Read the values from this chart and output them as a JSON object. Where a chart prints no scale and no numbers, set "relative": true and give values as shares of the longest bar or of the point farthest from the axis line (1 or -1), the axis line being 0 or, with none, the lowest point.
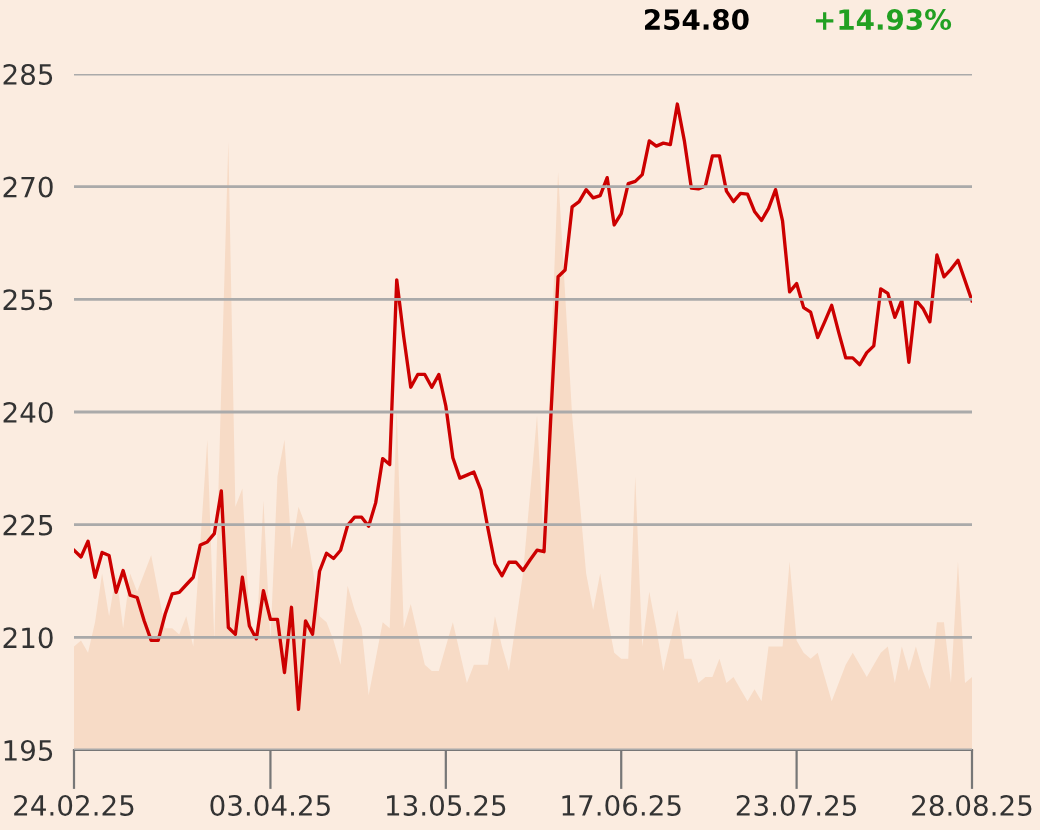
{
  "chart_data": [
    {
      "type": "line",
      "color": "#cc0000",
      "annotations": [
        "254.80",
        "+14.93%"
      ],
      "categories": [
        "24.02.25",
        null,
        null,
        null,
        null,
        null,
        null,
        null,
        null,
        null,
        null,
        null,
        null,
        null,
        null,
        null,
        null,
        null,
        null,
        null,
        null,
        null,
        null,
        null,
        null,
        null,
        null,
        null,
        "03.04.25",
        null,
        null,
        null,
        null,
        null,
        null,
        null,
        null,
        null,
        null,
        null,
        null,
        null,
        null,
        null,
        null,
        null,
        null,
        null,
        null,
        null,
        null,
        null,
        null,
        "13.05.25",
        null,
        null,
        null,
        null,
        null,
        null,
        null,
        null,
        null,
        null,
        null,
        null,
        null,
        null,
        null,
        null,
        null,
        null,
        null,
        null,
        null,
        null,
        null,
        null,
        "17.06.25",
        null,
        null,
        null,
        null,
        null,
        null,
        null,
        null,
        null,
        null,
        null,
        null,
        null,
        null,
        null,
        null,
        null,
        null,
        null,
        null,
        null,
        null,
        null,
        null,
        "23.07.25",
        null,
        null,
        null,
        null,
        null,
        null,
        null,
        null,
        null,
        null,
        null,
        null,
        null,
        null,
        null,
        null,
        null,
        null,
        null,
        null,
        null,
        null,
        null,
        null,
        "28.08.25"
      ],
      "ylim": [
        195,
        285
      ],
      "yticks": [
        195,
        210,
        225,
        240,
        255,
        270,
        285
      ],
      "grid": "y",
      "values": [
        221.6,
        220.7,
        222.8,
        218.0,
        221.3,
        220.9,
        216.0,
        218.9,
        215.6,
        215.3,
        212.2,
        209.6,
        209.6,
        213.1,
        215.8,
        216.0,
        217.0,
        218.0,
        222.3,
        222.7,
        223.8,
        229.5,
        211.3,
        210.4,
        218.0,
        211.5,
        209.8,
        216.2,
        212.4,
        212.4,
        205.3,
        214.0,
        200.4,
        212.2,
        210.4,
        218.8,
        221.2,
        220.5,
        221.6,
        224.9,
        226.0,
        226.0,
        224.8,
        227.9,
        233.8,
        233.0,
        257.6,
        250.0,
        243.3,
        245.0,
        245.0,
        243.3,
        245.0,
        240.8,
        233.9,
        231.2,
        231.6,
        232.0,
        229.6,
        224.5,
        219.8,
        218.2,
        220.0,
        220.0,
        218.9,
        220.3,
        221.6,
        221.4,
        240.0,
        258.0,
        258.9,
        267.3,
        268.0,
        269.6,
        268.5,
        268.8,
        271.2,
        264.9,
        266.4,
        270.4,
        270.7,
        271.6,
        276.1,
        275.4,
        275.8,
        275.6,
        281.0,
        276.1,
        269.8,
        269.7,
        270.1,
        274.1,
        274.1,
        269.4,
        268.0,
        269.1,
        269.0,
        266.7,
        265.5,
        267.1,
        269.6,
        265.4,
        256.0,
        257.1,
        253.9,
        253.3,
        249.9,
        252.0,
        254.2,
        250.6,
        247.2,
        247.2,
        246.3,
        247.9,
        248.8,
        256.4,
        255.8,
        252.6,
        254.9,
        246.6,
        254.9,
        253.8,
        252.0,
        260.9,
        258.0,
        259.0,
        260.2,
        257.5,
        254.8
      ]
    },
    {
      "type": "area",
      "relative": true,
      "color": "#f7dbc6",
      "categories": [
        null,
        null,
        null,
        null,
        null,
        null,
        null,
        null,
        null,
        null,
        null,
        null,
        null,
        null,
        null,
        null,
        null,
        null,
        null,
        null,
        null,
        null,
        null,
        null,
        null,
        null,
        null,
        null,
        null,
        null,
        null,
        null,
        null,
        null,
        null,
        null,
        null,
        null,
        null,
        null,
        null,
        null,
        null,
        null,
        null,
        null,
        null,
        null,
        null,
        null,
        null,
        null,
        null,
        null,
        null,
        null,
        null,
        null,
        null,
        null,
        null,
        null,
        null,
        null,
        null,
        null,
        null,
        null,
        null,
        null,
        null,
        null,
        null,
        null,
        null,
        null,
        null,
        null,
        null,
        null,
        null,
        null,
        null,
        null,
        null,
        null,
        null,
        null,
        null,
        null,
        null,
        null,
        null,
        null,
        null,
        null,
        null,
        null,
        null,
        null,
        null,
        null,
        null,
        null,
        null,
        null,
        null,
        null,
        null,
        null,
        null,
        null,
        null,
        null,
        null,
        null,
        null,
        null,
        null,
        null,
        null,
        null,
        null,
        null,
        null,
        null,
        null,
        null,
        null
      ],
      "values": [
        0.17,
        0.18,
        0.16,
        0.21,
        0.29,
        0.22,
        0.29,
        0.2,
        0.29,
        0.26,
        0.29,
        0.32,
        0.26,
        0.2,
        0.2,
        0.19,
        0.22,
        0.17,
        0.34,
        0.51,
        0.18,
        0.6,
        1.0,
        0.4,
        0.43,
        0.22,
        0.18,
        0.41,
        0.18,
        0.45,
        0.51,
        0.33,
        0.4,
        0.37,
        0.3,
        0.22,
        0.21,
        0.18,
        0.14,
        0.27,
        0.23,
        0.2,
        0.09,
        0.15,
        0.21,
        0.2,
        0.56,
        0.2,
        0.24,
        0.19,
        0.14,
        0.13,
        0.13,
        0.17,
        0.21,
        0.16,
        0.11,
        0.14,
        0.14,
        0.14,
        0.22,
        0.17,
        0.13,
        0.21,
        0.29,
        0.42,
        0.55,
        0.33,
        0.65,
        0.95,
        0.75,
        0.55,
        0.42,
        0.29,
        0.23,
        0.29,
        0.22,
        0.16,
        0.15,
        0.15,
        0.45,
        0.17,
        0.26,
        0.2,
        0.13,
        0.18,
        0.23,
        0.15,
        0.15,
        0.11,
        0.12,
        0.12,
        0.15,
        0.11,
        0.12,
        0.1,
        0.08,
        0.1,
        0.08,
        0.17,
        0.17,
        0.17,
        0.31,
        0.18,
        0.16,
        0.15,
        0.16,
        0.12,
        0.08,
        0.11,
        0.14,
        0.16,
        0.14,
        0.12,
        0.14,
        0.16,
        0.17,
        0.11,
        0.17,
        0.13,
        0.17,
        0.13,
        0.1,
        0.21,
        0.21,
        0.11,
        0.31,
        0.11,
        0.12
      ]
    }
  ]
}
